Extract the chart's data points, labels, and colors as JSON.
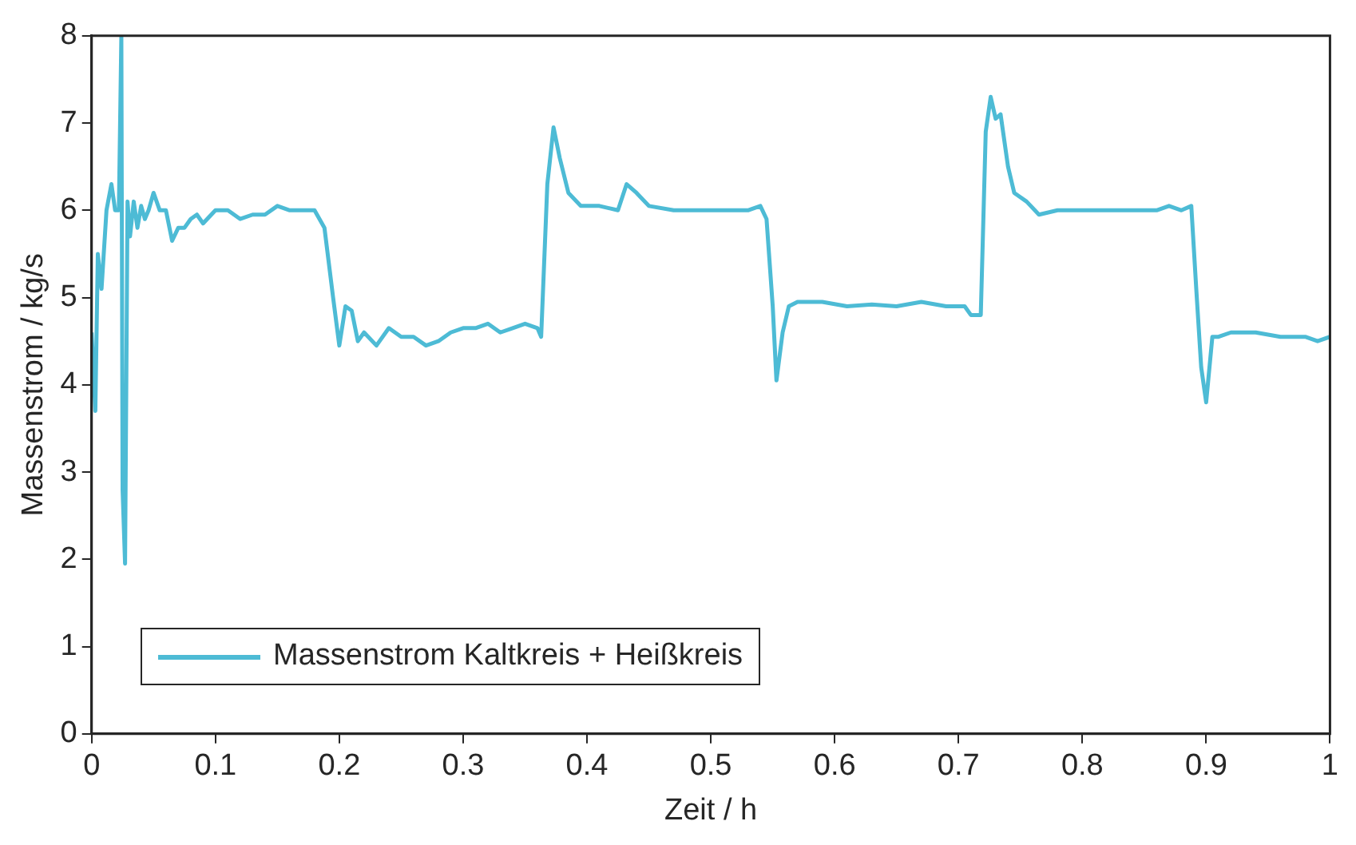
{
  "chart_data": {
    "type": "line",
    "xlabel": "Zeit / h",
    "ylabel": "Massenstrom / kg/s",
    "xlim": [
      0,
      1
    ],
    "ylim": [
      0,
      8
    ],
    "xticks": [
      0,
      0.1,
      0.2,
      0.3,
      0.4,
      0.5,
      0.6,
      0.7,
      0.8,
      0.9,
      1
    ],
    "yticks": [
      0,
      1,
      2,
      3,
      4,
      5,
      6,
      7,
      8
    ],
    "grid": false,
    "legend": "bottom left",
    "marker": "none",
    "line_style": "solid",
    "series": [
      {
        "name": "Massenstrom Kaltkreis + Heißkreis",
        "color": "#4dbbd5",
        "x": [
          0,
          0.003,
          0.005,
          0.008,
          0.012,
          0.016,
          0.019,
          0.022,
          0.024,
          0.025,
          0.027,
          0.029,
          0.031,
          0.034,
          0.037,
          0.04,
          0.043,
          0.046,
          0.05,
          0.055,
          0.06,
          0.065,
          0.07,
          0.075,
          0.08,
          0.085,
          0.09,
          0.1,
          0.11,
          0.12,
          0.13,
          0.14,
          0.15,
          0.16,
          0.17,
          0.18,
          0.188,
          0.195,
          0.2,
          0.205,
          0.21,
          0.215,
          0.22,
          0.23,
          0.24,
          0.25,
          0.26,
          0.27,
          0.28,
          0.29,
          0.3,
          0.31,
          0.32,
          0.33,
          0.34,
          0.35,
          0.36,
          0.363,
          0.368,
          0.373,
          0.378,
          0.385,
          0.395,
          0.41,
          0.425,
          0.432,
          0.44,
          0.45,
          0.47,
          0.49,
          0.51,
          0.53,
          0.54,
          0.545,
          0.55,
          0.553,
          0.558,
          0.563,
          0.57,
          0.59,
          0.61,
          0.63,
          0.65,
          0.67,
          0.69,
          0.705,
          0.71,
          0.718,
          0.722,
          0.726,
          0.73,
          0.734,
          0.74,
          0.745,
          0.755,
          0.765,
          0.78,
          0.8,
          0.82,
          0.84,
          0.86,
          0.87,
          0.88,
          0.888,
          0.892,
          0.896,
          0.9,
          0.905,
          0.91,
          0.92,
          0.94,
          0.96,
          0.98,
          0.99,
          1
        ],
        "values": [
          4.6,
          3.7,
          5.5,
          5.1,
          6.0,
          6.3,
          6.0,
          6.0,
          8.0,
          2.8,
          1.95,
          6.1,
          5.7,
          6.1,
          5.8,
          6.05,
          5.9,
          6.0,
          6.2,
          6.0,
          6.0,
          5.65,
          5.8,
          5.8,
          5.9,
          5.95,
          5.85,
          6.0,
          6.0,
          5.9,
          5.95,
          5.95,
          6.05,
          6.0,
          6.0,
          6.0,
          5.8,
          5.0,
          4.45,
          4.9,
          4.85,
          4.5,
          4.6,
          4.45,
          4.65,
          4.55,
          4.55,
          4.45,
          4.5,
          4.6,
          4.65,
          4.65,
          4.7,
          4.6,
          4.65,
          4.7,
          4.65,
          4.55,
          6.3,
          6.95,
          6.6,
          6.2,
          6.05,
          6.05,
          6.0,
          6.3,
          6.2,
          6.05,
          6.0,
          6.0,
          6.0,
          6.0,
          6.05,
          5.9,
          4.9,
          4.05,
          4.6,
          4.9,
          4.95,
          4.95,
          4.9,
          4.92,
          4.9,
          4.95,
          4.9,
          4.9,
          4.8,
          4.8,
          6.9,
          7.3,
          7.05,
          7.1,
          6.5,
          6.2,
          6.1,
          5.95,
          6.0,
          6.0,
          6.0,
          6.0,
          6.0,
          6.05,
          6.0,
          6.05,
          5.1,
          4.2,
          3.8,
          4.55,
          4.55,
          4.6,
          4.6,
          4.55,
          4.55,
          4.5,
          4.55
        ]
      }
    ]
  }
}
